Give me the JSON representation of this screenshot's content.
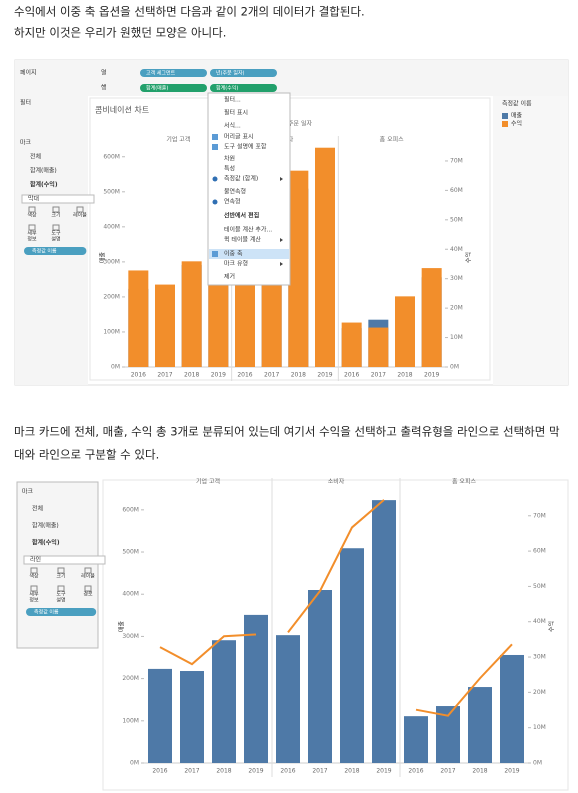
{
  "text_blocks": [
    [
      "수익에서 이중 축 옵션을 선택하면 다음과 같이 2개의 데이터가 결합된다.",
      "하지만 이것은 우리가 원했던 모양은 아니다."
    ],
    [
      "마크 카드에 전체, 매출, 수익 총 3개로 분류되어 있는데 여기서 수익을 선택하고 출력유형을 라인으로 선택하면 막",
      "대와 라인으로 구분할 수 있다."
    ]
  ],
  "data": {
    "segments": [
      "기업 고객",
      "소비자",
      "홈 오피스"
    ],
    "years": [
      "2016",
      "2017",
      "2018",
      "2019"
    ],
    "sales": [
      [
        223,
        218,
        291,
        351
      ],
      [
        303,
        410,
        509,
        623
      ],
      [
        111,
        135,
        180,
        256
      ]
    ],
    "profit": [
      [
        32.8,
        28,
        35.9,
        36.4
      ],
      [
        37,
        48.7,
        66.7,
        74.5
      ],
      [
        15.1,
        13.4,
        24,
        33.6
      ]
    ],
    "sales_color": "#4e79a7",
    "profit_color": "#f28e2b",
    "yticks": [
      {
        "value": 0,
        "label": "0M"
      },
      {
        "value": 100,
        "label": "100M"
      },
      {
        "value": 200,
        "label": "200M"
      },
      {
        "value": 300,
        "label": "300M"
      },
      {
        "value": 400,
        "label": "400M"
      },
      {
        "value": 500,
        "label": "500M"
      },
      {
        "value": 600,
        "label": "600M"
      }
    ],
    "y2ticks": [
      {
        "value": 0,
        "label": "0M"
      },
      {
        "value": 10,
        "label": "10M"
      },
      {
        "value": 20,
        "label": "20M"
      },
      {
        "value": 30,
        "label": "30M"
      },
      {
        "value": 40,
        "label": "40M"
      },
      {
        "value": 50,
        "label": "50M"
      },
      {
        "value": 60,
        "label": "60M"
      },
      {
        "value": 70,
        "label": "70M"
      }
    ],
    "y_label": "매출",
    "y2_label": "수익"
  },
  "screenshot1": {
    "pages": "페이지",
    "filters": "필터",
    "columns_label": "열",
    "rows_label": "행",
    "column_pills": [
      "고객 세그먼트",
      "년(주문 일자)"
    ],
    "row_pills": [
      "합계(매출)",
      "합계(수익)"
    ],
    "marks": "마크",
    "mark_rows": [
      "전체",
      "합계(매출)",
      "합계(수익)"
    ],
    "mark_type": "막대",
    "cards": [
      [
        "색상"
      ],
      [
        "크기"
      ],
      [
        "레이블"
      ],
      [
        "세부",
        "정보"
      ],
      [
        "도구",
        "설명"
      ]
    ],
    "measure_pill": "측정값 이름",
    "title": "콤비네이션 차트",
    "header": "주문 일자",
    "menu": [
      {
        "label": "필터..."
      },
      {
        "label": "필터 표시"
      },
      {
        "label": "서식..."
      },
      {
        "label": "머리글 표시",
        "mark": "check"
      },
      {
        "label": "도구 설명에 포함",
        "mark": "check"
      },
      {
        "label": "차원"
      },
      {
        "label": "특성"
      },
      {
        "label": "측정값 (합계)",
        "mark": "radio",
        "sub": true
      },
      {
        "label": "불연속형"
      },
      {
        "label": "연속형",
        "mark": "radio"
      },
      {
        "label": "선반에서 편집",
        "bold": true
      },
      {
        "label": "테이블 계산 추가..."
      },
      {
        "label": "퀵 테이블 계산",
        "sub": true
      },
      {
        "label": "이중 축",
        "mark": "check",
        "highlight": true
      },
      {
        "label": "마크 유형",
        "sub": true
      },
      {
        "label": "제거"
      }
    ],
    "legend_title": "측정값 이름",
    "legend": [
      {
        "name": "매출",
        "color": "#4e79a7"
      },
      {
        "name": "수익",
        "color": "#f28e2b"
      }
    ],
    "ylim": [
      0,
      625
    ],
    "y2lim": [
      0,
      74.4
    ]
  },
  "screenshot2": {
    "marks": "마크",
    "mark_rows": [
      "전체",
      "합계(매출)",
      "합계(수익)"
    ],
    "mark_type": "라인",
    "cards": [
      [
        "색상"
      ],
      [
        "크기"
      ],
      [
        "레이블"
      ],
      [
        "세부",
        "정보"
      ],
      [
        "도구",
        "설명"
      ],
      [
        "경로"
      ]
    ],
    "measure_pill": "측정값 이름",
    "ylim": [
      0,
      647
    ],
    "y2lim": [
      0,
      77.3
    ]
  }
}
